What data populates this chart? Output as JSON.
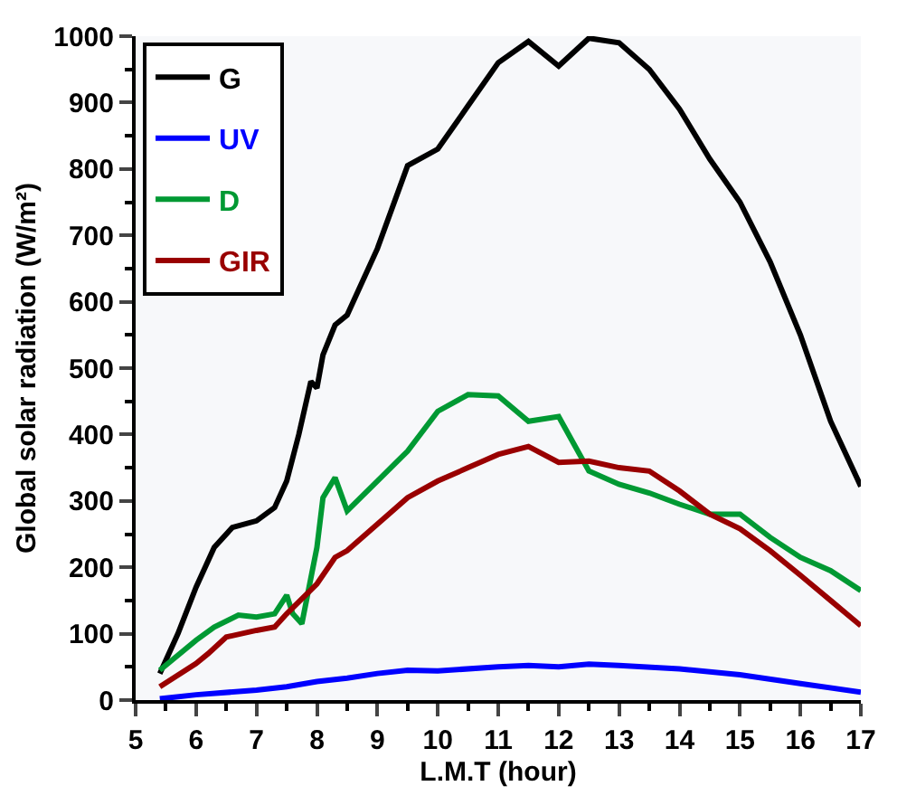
{
  "chart_data": {
    "type": "line",
    "xlabel": "L.M.T (hour)",
    "ylabel": "Global solar radiation (W/m²)",
    "xlim": [
      5,
      17
    ],
    "xticks": [
      5,
      6,
      7,
      8,
      9,
      10,
      11,
      12,
      13,
      14,
      15,
      16,
      17
    ],
    "ylim": [
      0,
      1000
    ],
    "yticks": [
      0,
      100,
      200,
      300,
      400,
      500,
      600,
      700,
      800,
      900,
      1000
    ],
    "grid": false,
    "legend": "top left",
    "marker": "none",
    "line_style": "solid",
    "series": [
      {
        "name": "G",
        "color": "#000000",
        "x": [
          5.4,
          5.7,
          6,
          6.3,
          6.6,
          7,
          7.3,
          7.5,
          7.7,
          7.9,
          8,
          8.1,
          8.3,
          8.5,
          9,
          9.5,
          10,
          10.5,
          11,
          11.5,
          12,
          12.5,
          13,
          13.5,
          14,
          14.5,
          15,
          15.5,
          16,
          16.5,
          17
        ],
        "values": [
          40,
          100,
          170,
          230,
          260,
          270,
          290,
          330,
          400,
          480,
          470,
          520,
          565,
          580,
          680,
          805,
          830,
          895,
          960,
          992,
          955,
          997,
          990,
          950,
          890,
          815,
          750,
          660,
          550,
          420,
          322
        ]
      },
      {
        "name": "UV",
        "color": "#0000ff",
        "x": [
          5.4,
          6,
          7,
          7.5,
          8,
          8.5,
          9,
          9.5,
          10,
          11,
          11.5,
          12,
          12.5,
          13,
          14,
          15,
          16,
          17
        ],
        "values": [
          2,
          8,
          15,
          20,
          28,
          33,
          40,
          45,
          44,
          50,
          52,
          50,
          54,
          52,
          47,
          38,
          25,
          12
        ]
      },
      {
        "name": "D",
        "color": "#009933",
        "x": [
          5.4,
          6,
          6.3,
          6.7,
          7,
          7.3,
          7.5,
          7.6,
          7.75,
          8,
          8.1,
          8.3,
          8.5,
          9,
          9.5,
          10,
          10.5,
          11,
          11.5,
          12,
          12.5,
          13,
          13.5,
          14,
          14.5,
          15,
          15.5,
          16,
          16.5,
          17
        ],
        "values": [
          45,
          90,
          110,
          128,
          125,
          130,
          158,
          130,
          115,
          230,
          305,
          335,
          285,
          330,
          375,
          435,
          460,
          458,
          420,
          427,
          345,
          325,
          312,
          295,
          280,
          280,
          245,
          215,
          195,
          165
        ]
      },
      {
        "name": "GIR",
        "color": "#990000",
        "x": [
          5.4,
          6,
          6.2,
          6.5,
          7,
          7.3,
          7.5,
          8,
          8.3,
          8.5,
          9,
          9.5,
          10,
          10.5,
          11,
          11.5,
          12,
          12.5,
          13,
          13.5,
          14,
          14.5,
          15,
          15.5,
          16,
          16.5,
          17
        ],
        "values": [
          20,
          55,
          70,
          95,
          105,
          110,
          130,
          175,
          215,
          225,
          265,
          305,
          330,
          350,
          370,
          382,
          358,
          360,
          350,
          345,
          315,
          280,
          258,
          225,
          188,
          150,
          112
        ]
      }
    ]
  }
}
